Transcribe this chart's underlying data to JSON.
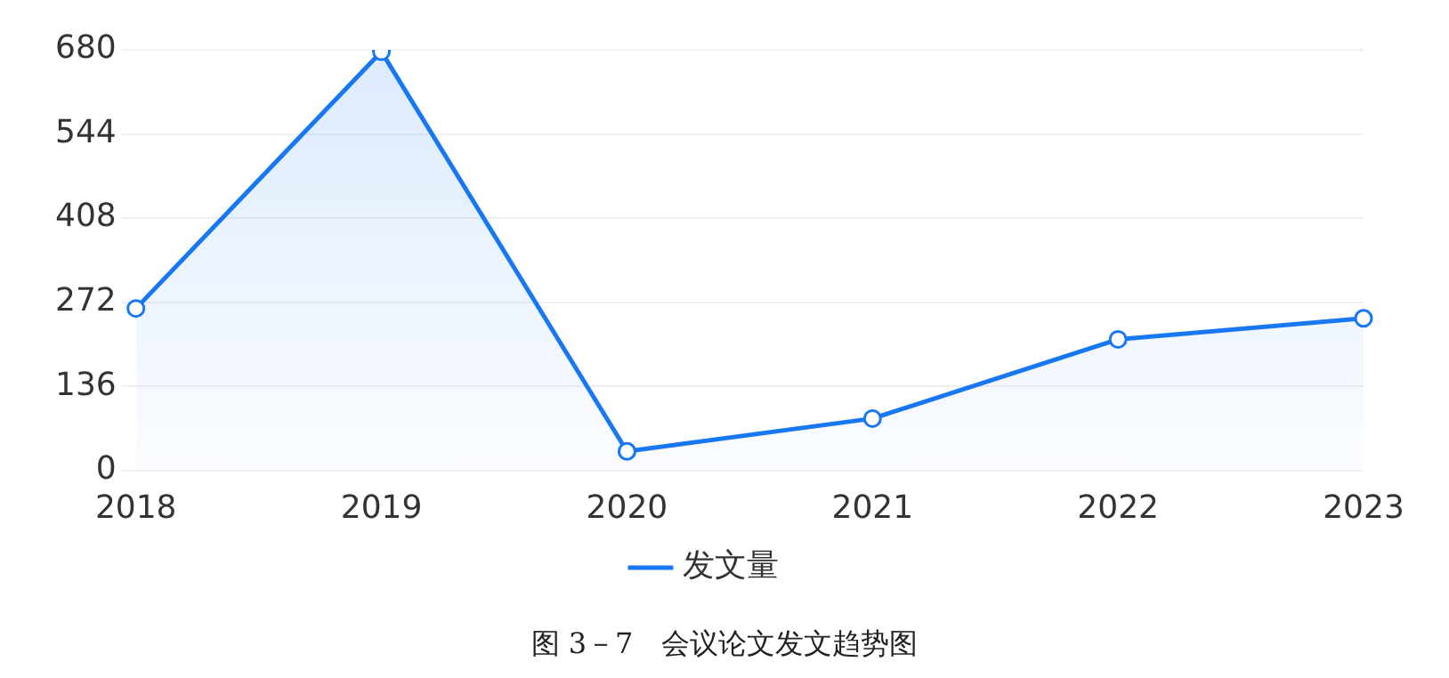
{
  "chart_data": {
    "type": "area",
    "categories": [
      "2018",
      "2019",
      "2020",
      "2021",
      "2022",
      "2023"
    ],
    "series": [
      {
        "name": "发文量",
        "color": "#1877f2",
        "values": [
          262,
          677,
          31,
          84,
          212,
          246
        ]
      }
    ],
    "ylim": [
      0,
      680
    ],
    "yticks": [
      0,
      136,
      272,
      408,
      544,
      680
    ],
    "grid": "y",
    "legend": "bottom",
    "marker": "circle",
    "line_style": "solid",
    "annotations": [
      "图 3－7　会议论文发文趋势图"
    ]
  }
}
